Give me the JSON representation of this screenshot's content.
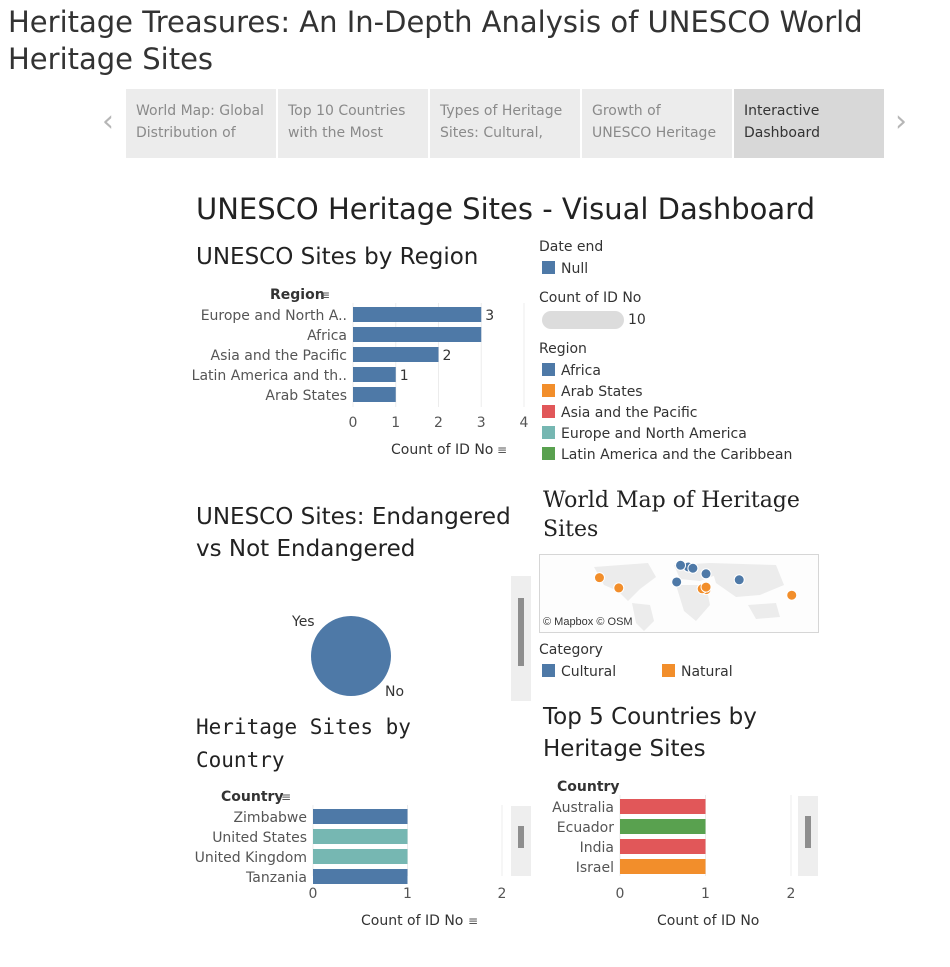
{
  "story": {
    "title": "Heritage Treasures: An In-Depth Analysis of UNESCO World Heritage Sites",
    "tabs": [
      {
        "label": "World Map: Global Distribution of",
        "active": false
      },
      {
        "label": "Top 10 Countries with the Most",
        "active": false
      },
      {
        "label": "Types of Heritage Sites: Cultural,",
        "active": false
      },
      {
        "label": "Growth of UNESCO Heritage",
        "active": false
      },
      {
        "label": "Interactive Dashboard",
        "active": true
      }
    ],
    "prev_icon": "chevron-left-icon",
    "next_icon": "chevron-right-icon"
  },
  "dashboard": {
    "title": "UNESCO Heritage Sites - Visual Dashboard"
  },
  "legends": {
    "date_end": {
      "title": "Date end",
      "items": [
        {
          "label": "Null",
          "color": "#4e79a7"
        }
      ]
    },
    "count": {
      "title": "Count of ID No",
      "value": "10"
    },
    "region": {
      "title": "Region",
      "items": [
        {
          "label": "Africa",
          "color": "#4e79a7"
        },
        {
          "label": "Arab States",
          "color": "#f28e2b"
        },
        {
          "label": "Asia and the Pacific",
          "color": "#e15759"
        },
        {
          "label": "Europe and North America",
          "color": "#76b7b2"
        },
        {
          "label": "Latin America and the Caribbean",
          "color": "#59a14f"
        }
      ]
    },
    "category": {
      "title": "Category",
      "items": [
        {
          "label": "Cultural",
          "color": "#4e79a7"
        },
        {
          "label": "Natural",
          "color": "#f28e2b"
        }
      ]
    }
  },
  "map": {
    "title": "World Map of Heritage Sites",
    "attribution": "© Mapbox © OSM"
  },
  "chart_data": [
    {
      "type": "bar",
      "title": "UNESCO Sites by Region",
      "ylabel": "Region",
      "xlabel": "Count of ID No",
      "categories": [
        "Europe and North A..",
        "Africa",
        "Asia and the Pacific",
        "Latin America and th..",
        "Arab States"
      ],
      "values": [
        3,
        3,
        2,
        1,
        1
      ],
      "data_labels": [
        "3",
        "",
        "2",
        "1",
        ""
      ],
      "xlim": [
        0,
        4
      ],
      "xticks": [
        "0",
        "1",
        "2",
        "3",
        "4"
      ],
      "color": "#4e79a7"
    },
    {
      "type": "pie",
      "title": "UNESCO Sites: Endangered vs Not Endangered",
      "labels": [
        "Yes",
        "No"
      ],
      "values": [
        0,
        10
      ],
      "color": "#4e79a7"
    },
    {
      "type": "scatter",
      "title": "World Map of Heritage Sites",
      "series": [
        {
          "name": "Cultural",
          "color": "#4e79a7",
          "points": [
            [
              12,
              48
            ],
            [
              2,
              52
            ],
            [
              18,
              45
            ],
            [
              35,
              32
            ],
            [
              -3,
              13
            ],
            [
              78,
              18
            ]
          ]
        },
        {
          "name": "Natural",
          "color": "#f28e2b",
          "points": [
            [
              -103,
              23
            ],
            [
              -78,
              -1
            ],
            [
              35,
              -5
            ],
            [
              30,
              -3
            ],
            [
              35,
              1
            ],
            [
              146,
              -18
            ]
          ]
        }
      ]
    },
    {
      "type": "bar",
      "title": "Heritage Sites by Country",
      "ylabel": "Country",
      "xlabel": "Count of ID No",
      "categories": [
        "Zimbabwe",
        "United States",
        "United Kingdom",
        "Tanzania"
      ],
      "values": [
        1,
        1,
        1,
        1
      ],
      "colors": [
        "#4e79a7",
        "#76b7b2",
        "#76b7b2",
        "#4e79a7"
      ],
      "xlim": [
        0,
        2
      ],
      "xticks": [
        "0",
        "1",
        "2"
      ]
    },
    {
      "type": "bar",
      "title": "Top 5 Countries by Heritage Sites",
      "ylabel": "Country",
      "xlabel": "Count of ID No",
      "categories": [
        "Australia",
        "Ecuador",
        "India",
        "Israel"
      ],
      "values": [
        1,
        1,
        1,
        1
      ],
      "colors": [
        "#e15759",
        "#59a14f",
        "#e15759",
        "#f28e2b"
      ],
      "xlim": [
        0,
        2
      ],
      "xticks": [
        "0",
        "1",
        "2"
      ]
    }
  ]
}
